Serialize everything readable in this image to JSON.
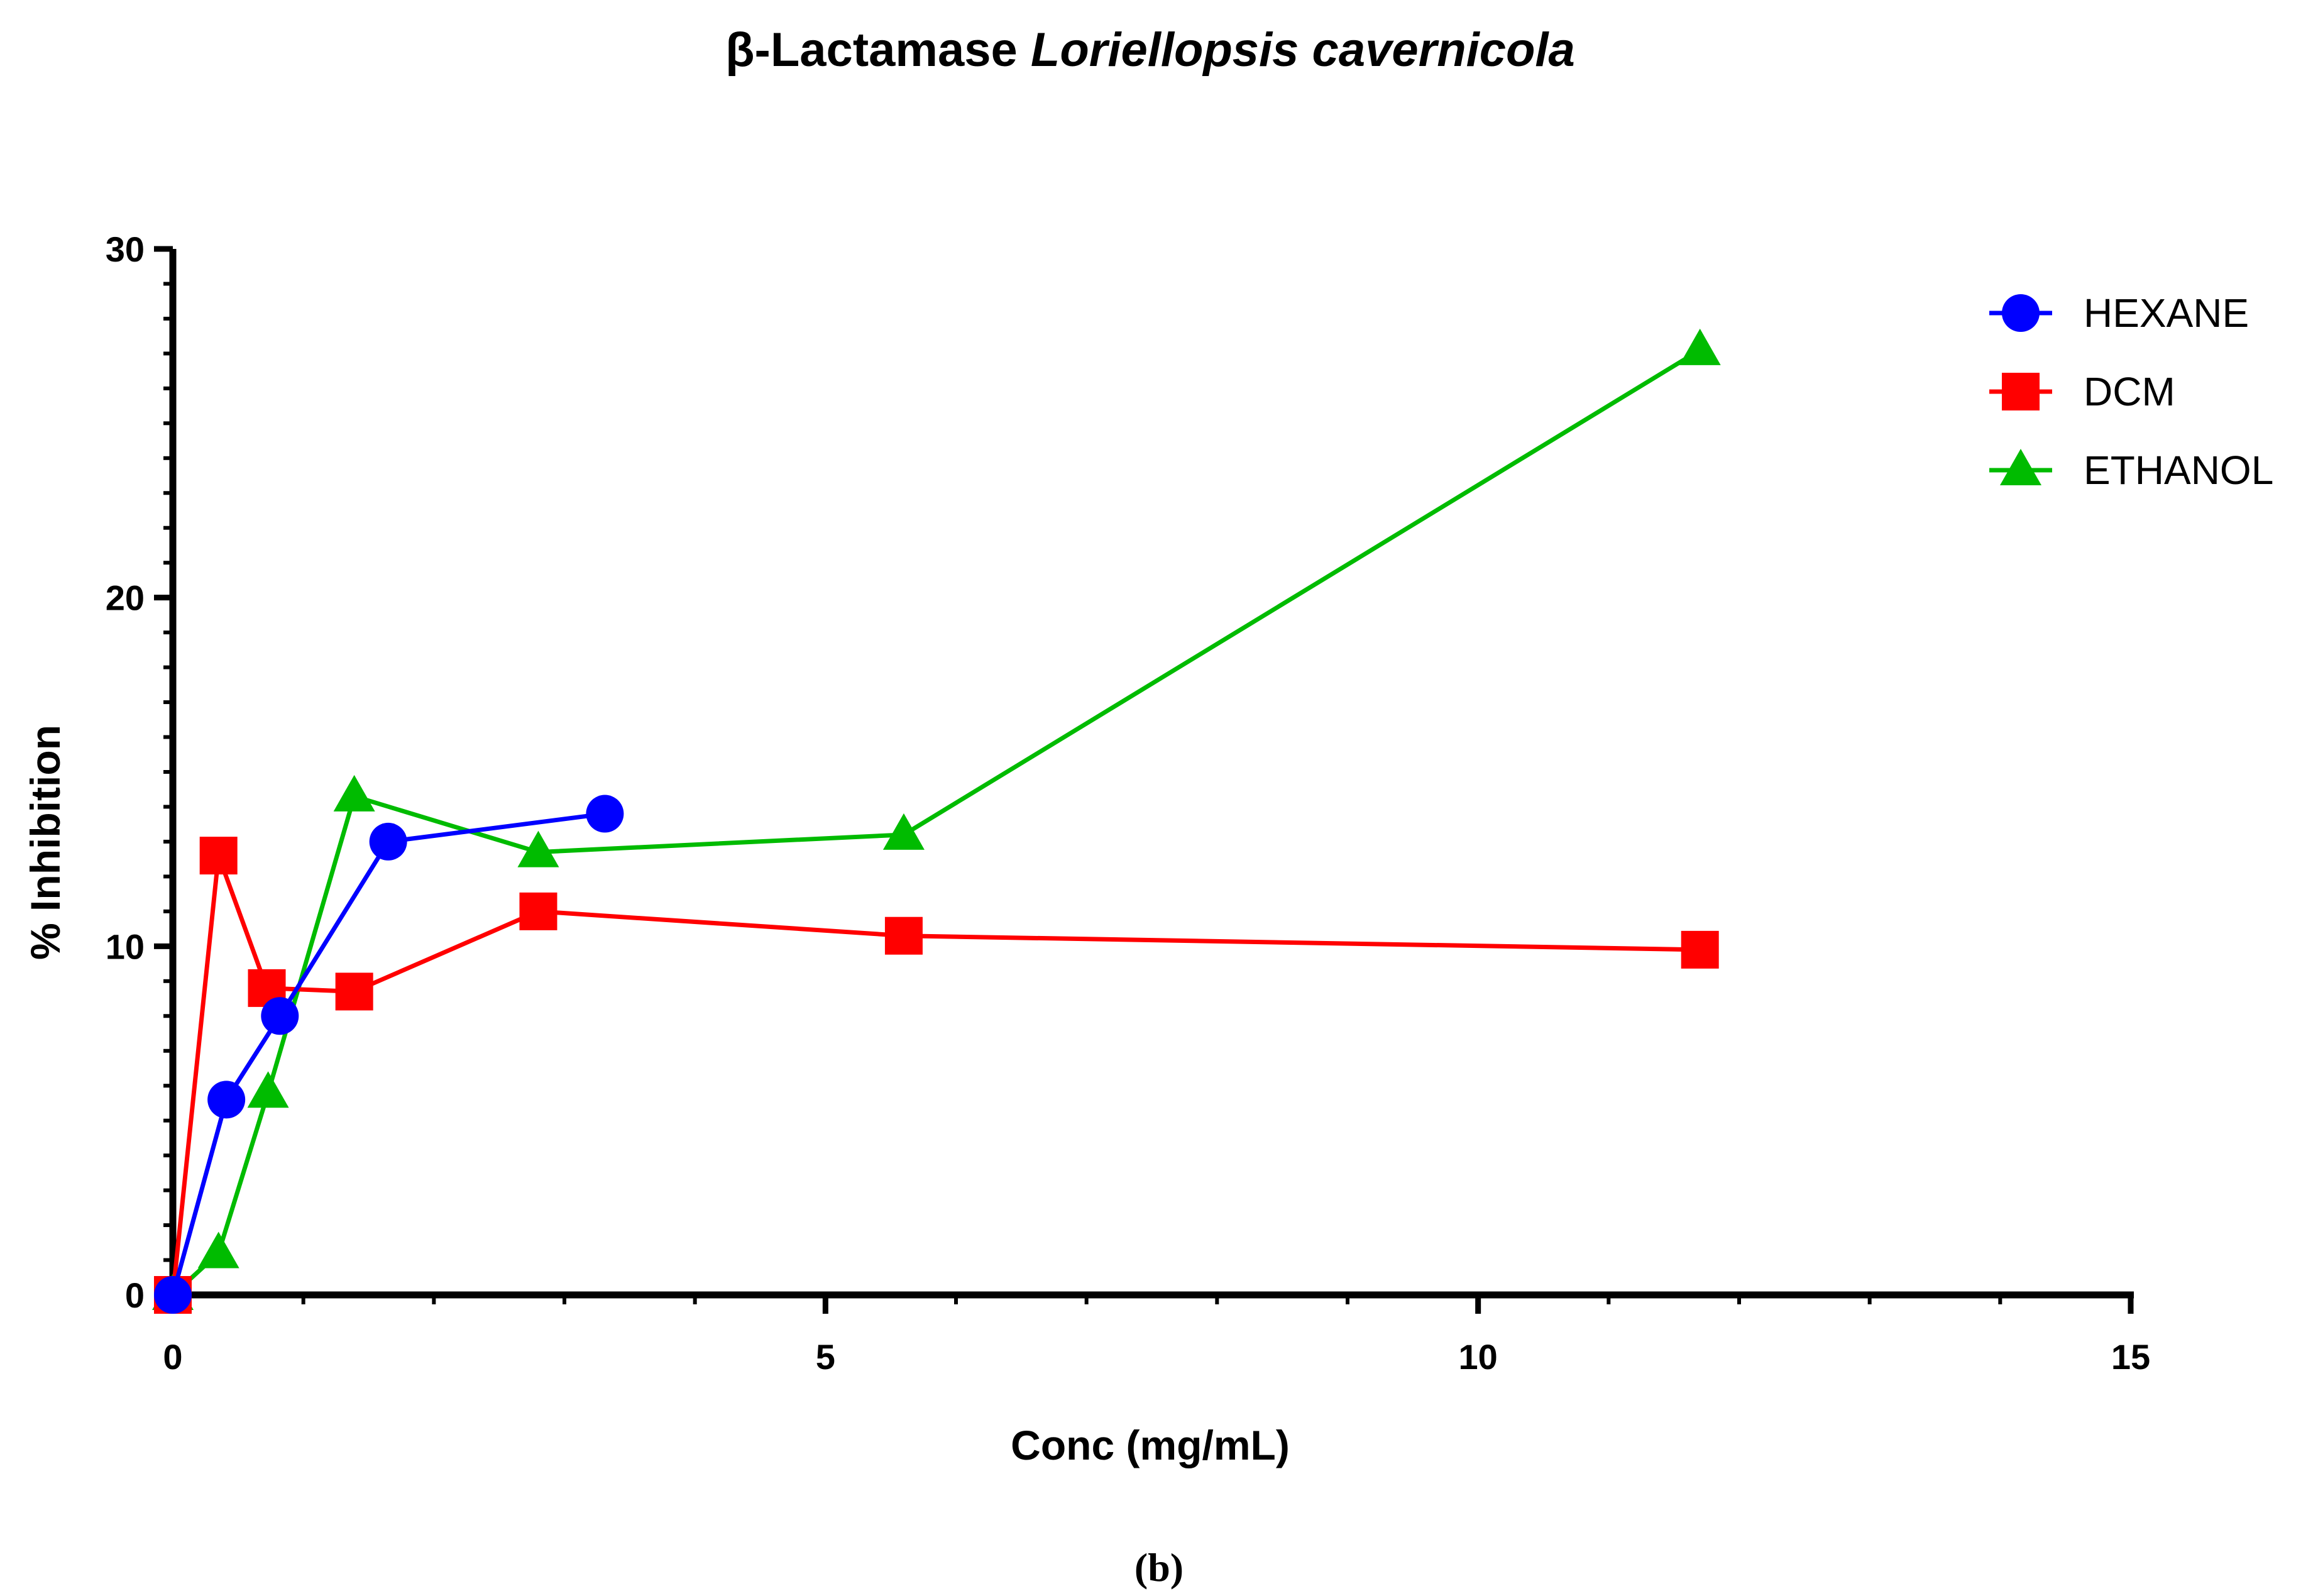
{
  "chart_data": {
    "type": "line",
    "title_prefix": "β-Lactamase ",
    "title_italic": "Loriellopsis cavernicola",
    "xlabel": "Conc (mg/mL)",
    "ylabel": "% Inhibition",
    "xlim": [
      0,
      15
    ],
    "ylim": [
      0,
      30
    ],
    "xticks": [
      0,
      5,
      10,
      15
    ],
    "yticks": [
      0,
      10,
      20,
      30
    ],
    "legend_position": "top-right",
    "grid": false,
    "series": [
      {
        "name": "HEXANE",
        "color": "#0000ff",
        "marker": "circle",
        "x": [
          0,
          0.41,
          0.82,
          1.65,
          3.31
        ],
        "y": [
          0,
          5.6,
          8.0,
          13.0,
          13.8
        ]
      },
      {
        "name": "DCM",
        "color": "#ff0000",
        "marker": "square",
        "x": [
          0,
          0.35,
          0.72,
          1.39,
          2.8,
          5.6,
          11.7
        ],
        "y": [
          0,
          12.6,
          8.8,
          8.7,
          11.0,
          10.3,
          9.9
        ]
      },
      {
        "name": "ETHANOL",
        "color": "#00bb00",
        "marker": "triangle",
        "x": [
          0,
          0.35,
          0.73,
          1.39,
          2.8,
          5.6,
          11.7
        ],
        "y": [
          0,
          1.2,
          5.8,
          14.3,
          12.7,
          13.2,
          27.1
        ]
      }
    ]
  },
  "caption": "(b)"
}
